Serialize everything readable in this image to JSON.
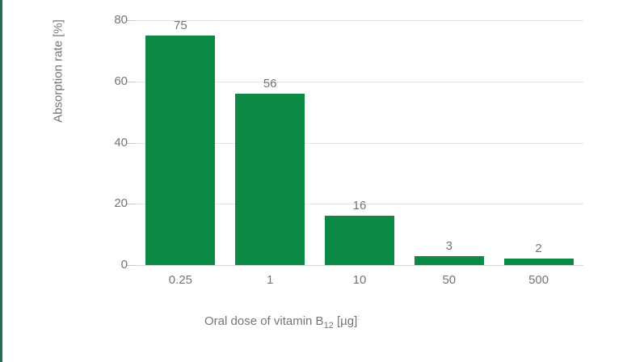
{
  "accent": {
    "left_border_color": "#2d6a52"
  },
  "chart_data": {
    "type": "bar",
    "title": "",
    "categories": [
      "0.25",
      "1",
      "10",
      "50",
      "500"
    ],
    "values": [
      75,
      56,
      16,
      3,
      2
    ],
    "value_labels": [
      "75",
      "56",
      "16",
      "3",
      "2"
    ],
    "ylabel": "Absorption rate [%]",
    "xlabel": {
      "prefix": "Oral dose of vitamin B",
      "subscript": "12",
      "suffix": " [µg]",
      "footnote": ":"
    },
    "ylim": [
      0,
      80
    ],
    "yticks": [
      0,
      20,
      40,
      60,
      80
    ],
    "grid": true,
    "legend": false,
    "bar_color": "#0a8a44",
    "text_color": "#757575",
    "gridline_color": "#e3e3e3"
  }
}
